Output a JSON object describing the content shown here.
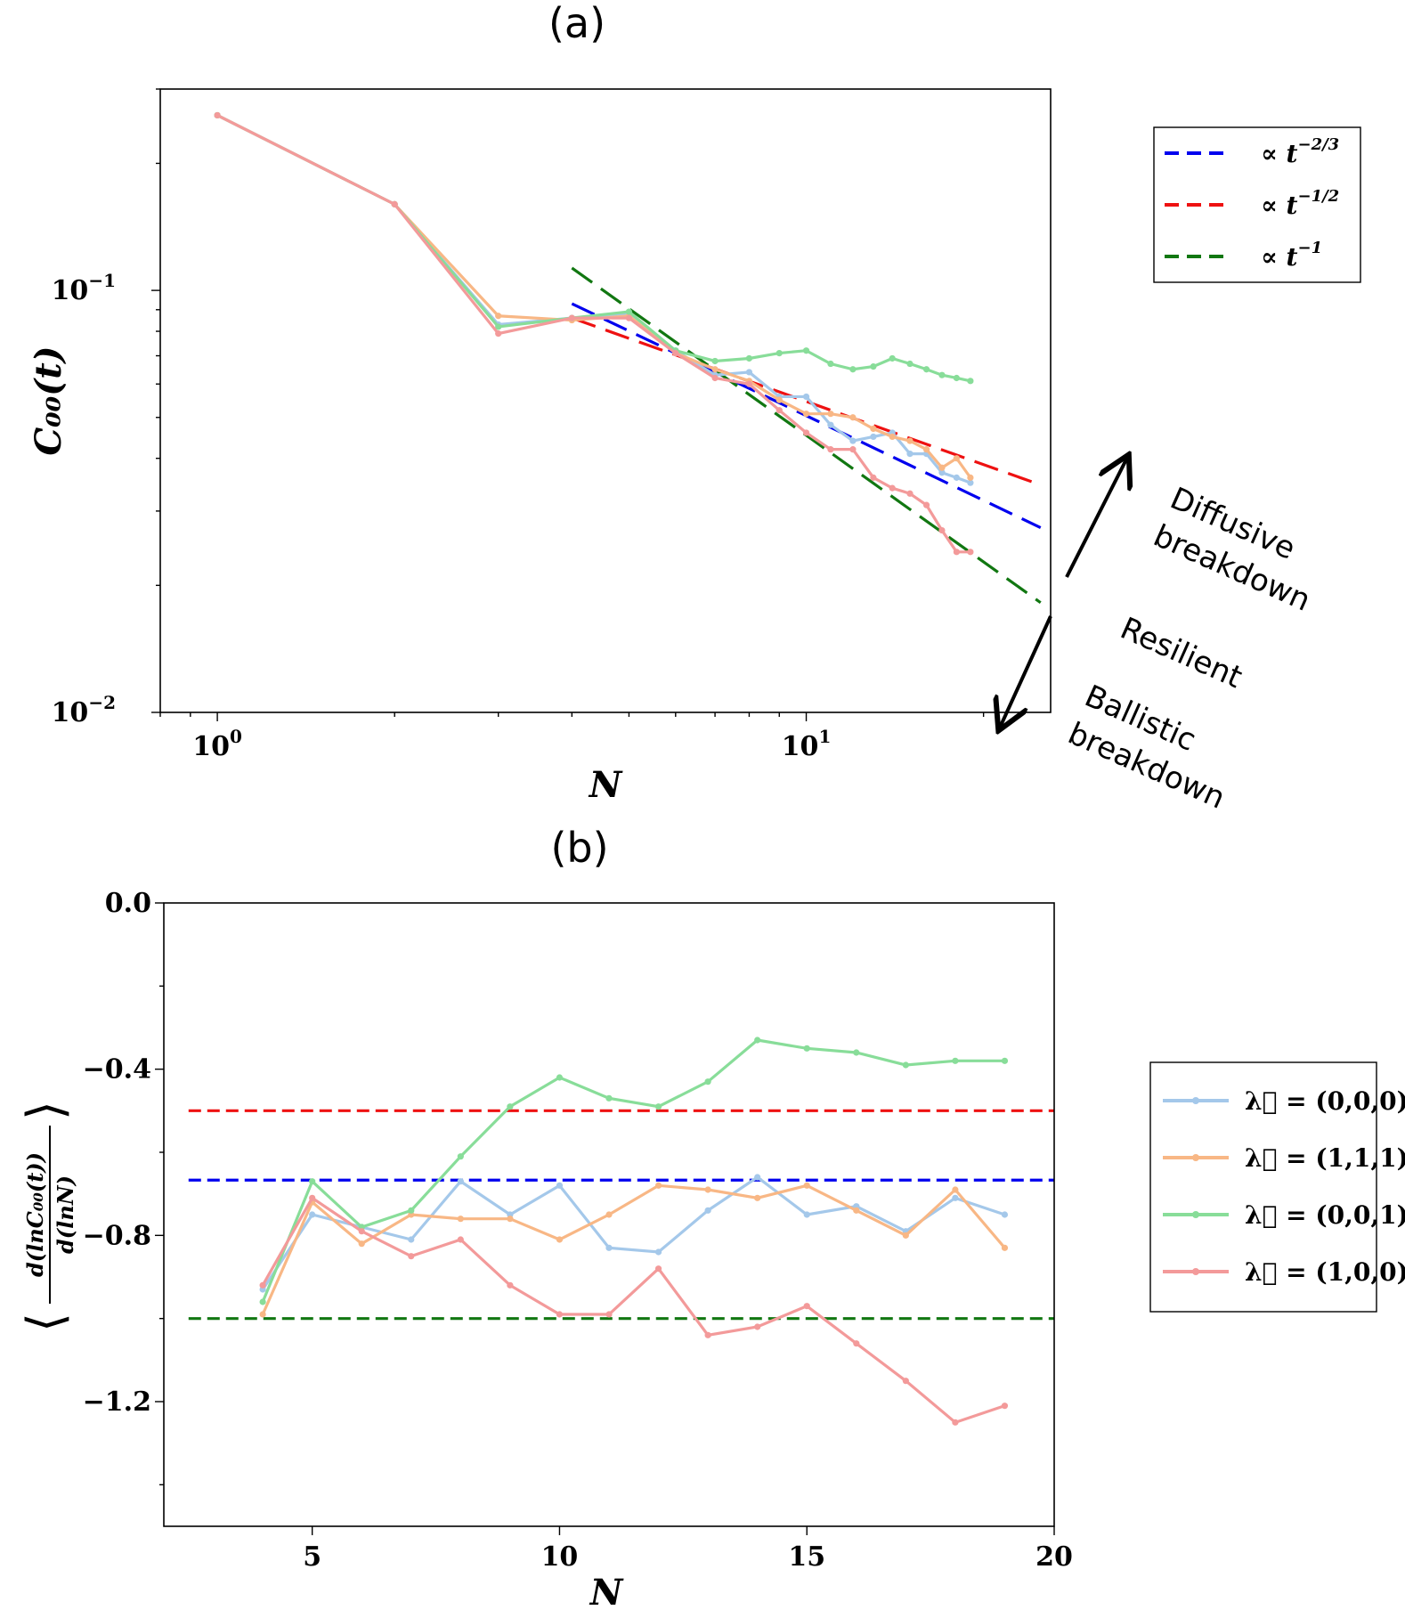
{
  "chart_data": [
    {
      "type": "line",
      "panel_title": "(a)",
      "xlabel": "N",
      "ylabel": "C₀₀(t)",
      "xscale": "log",
      "yscale": "log",
      "xlim": [
        0.8,
        26
      ],
      "ylim": [
        0.01,
        0.3
      ],
      "x_ticks": [
        1,
        10
      ],
      "y_ticks": [
        0.01,
        0.1
      ],
      "x_tick_labels": [
        {
          "base": "10",
          "exp": "0"
        },
        {
          "base": "10",
          "exp": "1"
        }
      ],
      "y_tick_labels": [
        {
          "base": "10",
          "exp": "−2"
        },
        {
          "base": "10",
          "exp": "−1"
        }
      ],
      "legend_placement": "outside-right-top",
      "legend": [
        {
          "label": "∝ t",
          "exp": "−2/3",
          "color": "#0000ee"
        },
        {
          "label": "∝ t",
          "exp": "−1/2",
          "color": "#ee1111"
        },
        {
          "label": "∝ t",
          "exp": "−1",
          "color": "#117711"
        }
      ],
      "fit_lines": [
        {
          "name": "blue",
          "color": "#0000ee",
          "x": [
            4,
            25
          ],
          "y": [
            0.093,
            0.0274
          ]
        },
        {
          "name": "red",
          "color": "#ee1111",
          "x": [
            4,
            25
          ],
          "y": [
            0.086,
            0.0346
          ]
        },
        {
          "name": "green",
          "color": "#117711",
          "x": [
            4,
            25
          ],
          "y": [
            0.113,
            0.0182
          ]
        }
      ],
      "series": [
        {
          "color": "#a4c8ea",
          "x": [
            1,
            2,
            3,
            4,
            5,
            6,
            7,
            8,
            9,
            10,
            11,
            12,
            13,
            14,
            15,
            16,
            17,
            18,
            19
          ],
          "y": [
            0.26,
            0.16,
            0.083,
            0.086,
            0.088,
            0.072,
            0.063,
            0.064,
            0.056,
            0.056,
            0.048,
            0.044,
            0.045,
            0.046,
            0.041,
            0.041,
            0.037,
            0.036,
            0.035
          ]
        },
        {
          "color": "#f8b785",
          "x": [
            1,
            2,
            3,
            4,
            5,
            6,
            7,
            8,
            9,
            10,
            11,
            12,
            13,
            14,
            15,
            16,
            17,
            18,
            19
          ],
          "y": [
            0.26,
            0.16,
            0.087,
            0.085,
            0.087,
            0.071,
            0.065,
            0.061,
            0.055,
            0.051,
            0.051,
            0.05,
            0.047,
            0.045,
            0.044,
            0.042,
            0.038,
            0.04,
            0.036
          ]
        },
        {
          "color": "#88dd99",
          "x": [
            1,
            2,
            3,
            4,
            5,
            6,
            7,
            8,
            9,
            10,
            11,
            12,
            13,
            14,
            15,
            16,
            17,
            18,
            19
          ],
          "y": [
            0.26,
            0.16,
            0.082,
            0.086,
            0.089,
            0.072,
            0.068,
            0.069,
            0.071,
            0.072,
            0.067,
            0.065,
            0.066,
            0.069,
            0.067,
            0.065,
            0.063,
            0.062,
            0.061
          ]
        },
        {
          "color": "#f39a9a",
          "x": [
            1,
            2,
            3,
            4,
            5,
            6,
            7,
            8,
            9,
            10,
            11,
            12,
            13,
            14,
            15,
            16,
            17,
            18,
            19
          ],
          "y": [
            0.26,
            0.16,
            0.079,
            0.086,
            0.086,
            0.071,
            0.062,
            0.06,
            0.052,
            0.046,
            0.042,
            0.042,
            0.036,
            0.034,
            0.033,
            0.031,
            0.027,
            0.024,
            0.024
          ]
        }
      ],
      "annotations": [
        "Diffusive breakdown",
        "Resilient",
        "Ballistic breakdown"
      ]
    },
    {
      "type": "line",
      "panel_title": "(b)",
      "xlabel": "N",
      "ylabel": "⟨d(lnC₀₀(t)) / d(lnN)⟩",
      "ylabel_parts": {
        "numerator": "d(lnC₀₀(t))",
        "denominator": "d(lnN)"
      },
      "xlim": [
        2,
        20
      ],
      "ylim": [
        -1.5,
        0
      ],
      "x_ticks": [
        5,
        10,
        15,
        20
      ],
      "x_tick_labels": [
        "5",
        "10",
        "15",
        "20"
      ],
      "y_ticks": [
        0.0,
        -0.4,
        -0.8,
        -1.2
      ],
      "y_tick_labels": [
        "0.0",
        "−0.4",
        "−0.8",
        "−1.2"
      ],
      "y_minor_ticks": [
        -0.2,
        -0.6,
        -1.0,
        -1.4
      ],
      "legend_placement": "outside-right-middle",
      "hlines": [
        {
          "y": -0.5,
          "color": "#ee1111"
        },
        {
          "y": -0.667,
          "color": "#0000ee"
        },
        {
          "y": -1.0,
          "color": "#117711"
        }
      ],
      "series": [
        {
          "name": "λ⃗ = (0,0,0)",
          "color": "#a4c8ea",
          "x": [
            4,
            5,
            6,
            7,
            8,
            9,
            10,
            11,
            12,
            13,
            14,
            15,
            16,
            17,
            18,
            19
          ],
          "y": [
            -0.93,
            -0.75,
            -0.78,
            -0.81,
            -0.67,
            -0.75,
            -0.68,
            -0.83,
            -0.84,
            -0.74,
            -0.66,
            -0.75,
            -0.73,
            -0.79,
            -0.71,
            -0.75
          ]
        },
        {
          "name": "λ⃗ = (1,1,1)",
          "color": "#f8b785",
          "x": [
            4,
            5,
            6,
            7,
            8,
            9,
            10,
            11,
            12,
            13,
            14,
            15,
            16,
            17,
            18,
            19
          ],
          "y": [
            -0.99,
            -0.72,
            -0.82,
            -0.75,
            -0.76,
            -0.76,
            -0.81,
            -0.75,
            -0.68,
            -0.69,
            -0.71,
            -0.68,
            -0.74,
            -0.8,
            -0.69,
            -0.83
          ]
        },
        {
          "name": "λ⃗ = (0,0,1)",
          "color": "#88dd99",
          "x": [
            4,
            5,
            6,
            7,
            8,
            9,
            10,
            11,
            12,
            13,
            14,
            15,
            16,
            17,
            18,
            19
          ],
          "y": [
            -0.96,
            -0.67,
            -0.78,
            -0.74,
            -0.61,
            -0.49,
            -0.42,
            -0.47,
            -0.49,
            -0.43,
            -0.33,
            -0.35,
            -0.36,
            -0.39,
            -0.38,
            -0.38
          ]
        },
        {
          "name": "λ⃗ = (1,0,0)",
          "color": "#f39a9a",
          "x": [
            4,
            5,
            6,
            7,
            8,
            9,
            10,
            11,
            12,
            13,
            14,
            15,
            16,
            17,
            18,
            19
          ],
          "y": [
            -0.92,
            -0.71,
            -0.79,
            -0.85,
            -0.81,
            -0.92,
            -0.99,
            -0.99,
            -0.88,
            -1.04,
            -1.02,
            -0.97,
            -1.06,
            -1.15,
            -1.25,
            -1.21
          ]
        }
      ]
    }
  ]
}
